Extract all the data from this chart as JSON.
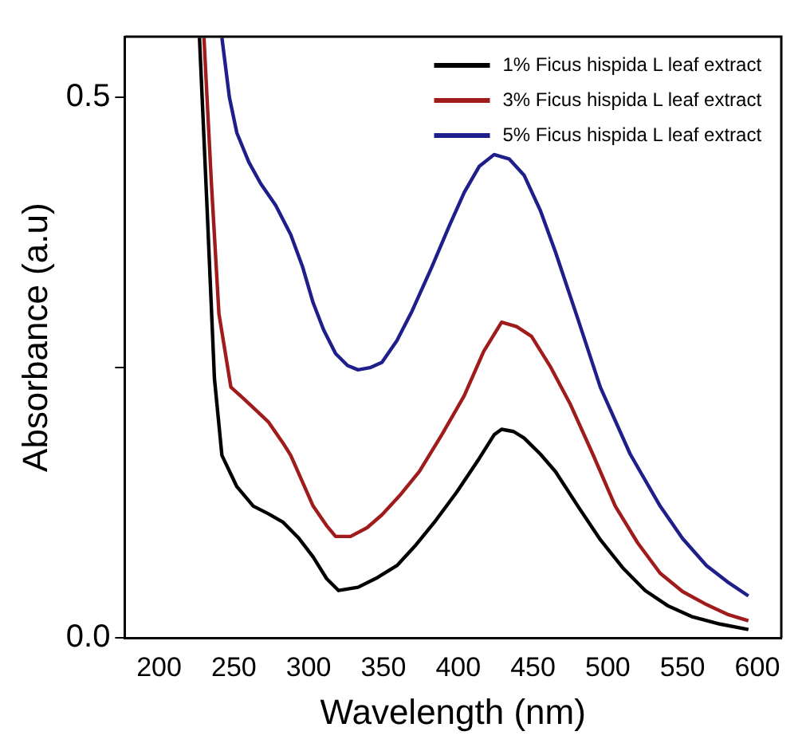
{
  "chart_data": {
    "type": "line",
    "xlabel": "Wavelength (nm)",
    "ylabel": "Absorbance (a.u)",
    "xlim": [
      177,
      616
    ],
    "ylim": [
      0,
      0.556
    ],
    "xticks": [
      200,
      250,
      300,
      350,
      400,
      450,
      500,
      550,
      600
    ],
    "yticks": [
      {
        "value": 0,
        "label": "0.0"
      },
      {
        "value": 0.25,
        "label": null
      },
      {
        "value": 0.5,
        "label": "0.5"
      }
    ],
    "grid": false,
    "legend": "top right",
    "marker": "none",
    "line_style": "solid",
    "series": [
      {
        "name": "1% Ficus hispida L leaf extract",
        "color": "#000000",
        "x": [
          227,
          232,
          237,
          242,
          252,
          263,
          273,
          283,
          293,
          303,
          312,
          320,
          333,
          346,
          359,
          371,
          384,
          399,
          414,
          424,
          429,
          437,
          444,
          455,
          465,
          480,
          495,
          510,
          525,
          540,
          556,
          575,
          594
        ],
        "values": [
          0.555,
          0.4,
          0.24,
          0.169,
          0.14,
          0.122,
          0.115,
          0.107,
          0.093,
          0.075,
          0.055,
          0.044,
          0.047,
          0.056,
          0.067,
          0.085,
          0.107,
          0.135,
          0.166,
          0.188,
          0.193,
          0.191,
          0.185,
          0.17,
          0.154,
          0.122,
          0.091,
          0.065,
          0.044,
          0.03,
          0.02,
          0.013,
          0.008
        ]
      },
      {
        "name": "3% Ficus hispida L leaf extract",
        "color": "#a01c1c",
        "x": [
          230,
          235,
          240,
          248,
          256,
          263,
          273,
          283,
          288,
          303,
          312,
          318,
          328,
          339,
          349,
          361,
          374,
          389,
          404,
          417,
          429,
          439,
          449,
          462,
          475,
          490,
          505,
          520,
          535,
          550,
          566,
          580,
          594
        ],
        "values": [
          0.555,
          0.42,
          0.3,
          0.232,
          0.222,
          0.213,
          0.2,
          0.18,
          0.169,
          0.122,
          0.104,
          0.094,
          0.094,
          0.102,
          0.114,
          0.132,
          0.154,
          0.188,
          0.224,
          0.265,
          0.292,
          0.288,
          0.279,
          0.25,
          0.216,
          0.17,
          0.122,
          0.088,
          0.06,
          0.043,
          0.031,
          0.022,
          0.016
        ]
      },
      {
        "name": "5% Ficus hispida L leaf extract",
        "color": "#1f1f8c",
        "x": [
          242,
          247,
          252,
          260,
          268,
          278,
          288,
          296,
          303,
          310,
          318,
          326,
          333,
          341,
          349,
          359,
          369,
          382,
          394,
          404,
          414,
          424,
          434,
          444,
          455,
          465,
          480,
          495,
          515,
          535,
          550,
          566,
          580,
          594
        ],
        "values": [
          0.555,
          0.5,
          0.467,
          0.44,
          0.42,
          0.4,
          0.373,
          0.343,
          0.31,
          0.285,
          0.263,
          0.252,
          0.248,
          0.25,
          0.255,
          0.275,
          0.302,
          0.342,
          0.381,
          0.412,
          0.436,
          0.447,
          0.443,
          0.428,
          0.395,
          0.357,
          0.295,
          0.232,
          0.17,
          0.122,
          0.092,
          0.067,
          0.052,
          0.039
        ]
      }
    ]
  }
}
